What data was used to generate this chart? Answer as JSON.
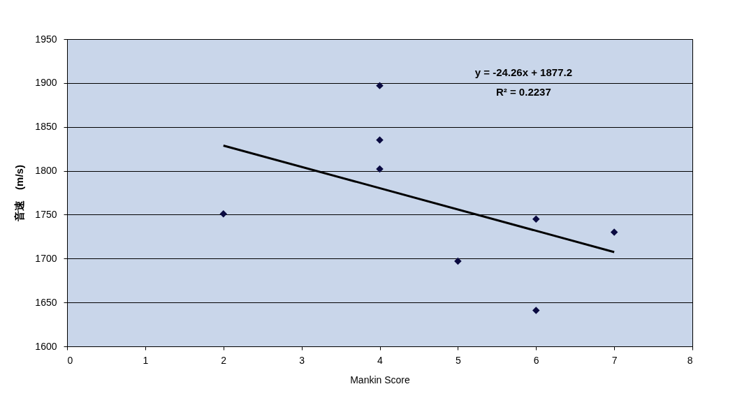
{
  "chart_data": {
    "type": "scatter",
    "xlabel": "Mankin Score",
    "ylabel": "音速　(m/s)",
    "xlim": [
      0,
      8
    ],
    "xticks": [
      0,
      1,
      2,
      3,
      4,
      5,
      6,
      7,
      8
    ],
    "ylim": [
      1600,
      1950
    ],
    "yticks": [
      1600,
      1650,
      1700,
      1750,
      1800,
      1850,
      1900,
      1950
    ],
    "grid": "y",
    "marker": "diamond",
    "annotations": [
      "y = -24.26x + 1877.2",
      "R² = 0.2237"
    ],
    "series": [
      {
        "color": "#0a0a40",
        "x": [
          2,
          4,
          4,
          4,
          5,
          6,
          6,
          7
        ],
        "values": [
          1751,
          1897,
          1835,
          1802,
          1697,
          1745,
          1641,
          1730
        ]
      },
      {
        "type": "line",
        "marker": "none",
        "color": "#000000",
        "x": [
          2,
          7
        ],
        "values": [
          1828.7,
          1707.4
        ]
      }
    ]
  }
}
